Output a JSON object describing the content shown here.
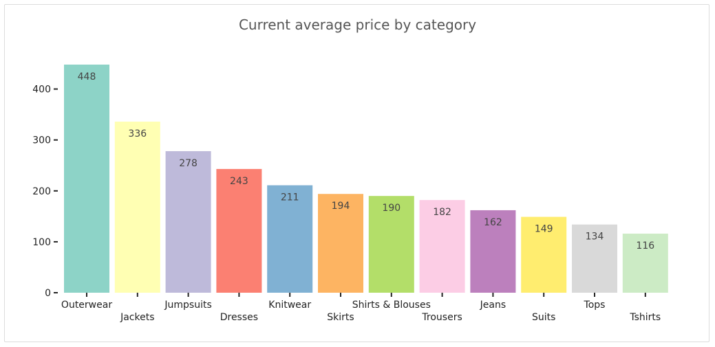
{
  "chart_data": {
    "type": "bar",
    "title": "Current average price by category",
    "xlabel": "",
    "ylabel": "",
    "ylim": [
      0,
      448
    ],
    "yticks": [
      0,
      100,
      200,
      300,
      400
    ],
    "grid": false,
    "categories": [
      "Outerwear",
      "Jackets",
      "Jumpsuits",
      "Dresses",
      "Knitwear",
      "Skirts",
      "Shirts & Blouses",
      "Trousers",
      "Jeans",
      "Suits",
      "Tops",
      "Tshirts"
    ],
    "values": [
      448,
      336,
      278,
      243,
      211,
      194,
      190,
      182,
      162,
      149,
      134,
      116
    ],
    "colors": [
      "#8dd3c7",
      "#ffffb3",
      "#bebada",
      "#fb8072",
      "#80b1d3",
      "#fdb462",
      "#b3de69",
      "#fccde5",
      "#bc80bd",
      "#ffed6f",
      "#d9d9d9",
      "#ccebc5"
    ]
  }
}
